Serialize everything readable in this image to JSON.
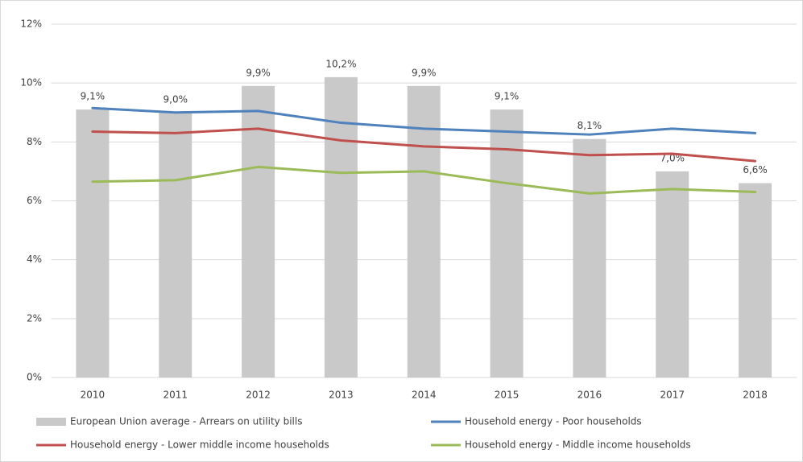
{
  "chart_data": {
    "type": "bar_line",
    "categories": [
      "2010",
      "2011",
      "2012",
      "2013",
      "2014",
      "2015",
      "2016",
      "2017",
      "2018"
    ],
    "series": [
      {
        "name": "European Union average - Arrears on utility bills",
        "type": "bar",
        "color": "#c9c9c9",
        "values": [
          9.1,
          9.0,
          9.9,
          10.2,
          9.9,
          9.1,
          8.1,
          7.0,
          6.6
        ],
        "value_labels": [
          "9,1%",
          "9,0%",
          "9,9%",
          "10,2%",
          "9,9%",
          "9,1%",
          "8,1%",
          "7,0%",
          "6,6%"
        ]
      },
      {
        "name": "Household energy - Poor households",
        "type": "line",
        "color": "#4f81bd",
        "values": [
          9.15,
          9.0,
          9.05,
          8.65,
          8.45,
          8.35,
          8.25,
          8.45,
          8.3
        ]
      },
      {
        "name": "Household energy - Lower middle income households",
        "type": "line",
        "color": "#c0504d",
        "values": [
          8.35,
          8.3,
          8.45,
          8.05,
          7.85,
          7.75,
          7.55,
          7.6,
          7.35
        ]
      },
      {
        "name": "Household energy - Middle income households",
        "type": "line",
        "color": "#9bbb59",
        "values": [
          6.65,
          6.7,
          7.15,
          6.95,
          7.0,
          6.6,
          6.25,
          6.4,
          6.3
        ]
      }
    ],
    "ylim": [
      0,
      12
    ],
    "yticks": [
      {
        "value": 0,
        "label": "0%"
      },
      {
        "value": 2,
        "label": "2%"
      },
      {
        "value": 4,
        "label": "4%"
      },
      {
        "value": 6,
        "label": "6%"
      },
      {
        "value": 8,
        "label": "8%"
      },
      {
        "value": 10,
        "label": "10%"
      },
      {
        "value": 12,
        "label": "12%"
      }
    ],
    "grid": true,
    "legend": "bottom"
  }
}
